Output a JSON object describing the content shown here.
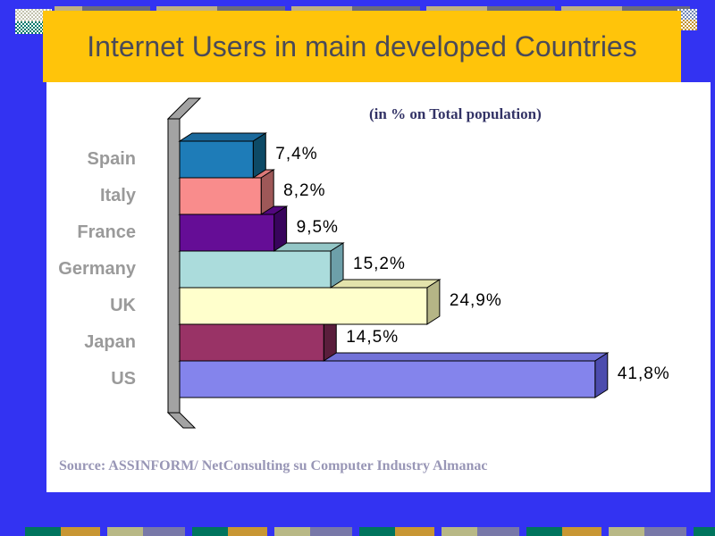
{
  "slide": {
    "title": "Internet Users in main developed Countries",
    "source": "Source: ASSINFORM/ NetConsulting su Computer Industry Almanac"
  },
  "chart_data": {
    "type": "bar",
    "orientation": "horizontal",
    "title": "",
    "subtitle": "(in % on Total population)",
    "categories": [
      "Spain",
      "Italy",
      "France",
      "Germany",
      "UK",
      "Japan",
      "US"
    ],
    "values": [
      7.4,
      8.2,
      9.5,
      15.2,
      24.9,
      14.5,
      41.8
    ],
    "value_labels": [
      "7,4%",
      "8,2%",
      "9,5%",
      "15,2%",
      "24,9%",
      "14,5%",
      "41,8%"
    ],
    "xlim": [
      0,
      45
    ],
    "grid": "off",
    "legend": "none",
    "bar_colors": [
      {
        "front": "#1E7CB8",
        "top": "#1A699C",
        "side": "#0D4A66"
      },
      {
        "front": "#F98C8C",
        "top": "#DC7A7A",
        "side": "#9E5858"
      },
      {
        "front": "#650D96",
        "top": "#52077E",
        "side": "#38045C"
      },
      {
        "front": "#ABDCDC",
        "top": "#93C6C6",
        "side": "#6D9FA9"
      },
      {
        "front": "#FFFFCC",
        "top": "#E3E3AC",
        "side": "#B5B586"
      },
      {
        "front": "#993366",
        "top": "#7E2A54",
        "side": "#5A1E3C"
      },
      {
        "front": "#8484EC",
        "top": "#7272D8",
        "side": "#4C4CAE"
      }
    ],
    "axis_wall_color": "#A3A3A3",
    "category_label_color": "#9A9A9A",
    "value_label_color": "#000000"
  },
  "theme": {
    "background_blue": "#3333F2",
    "banner_gold": "#FFC40A",
    "panel_white": "#FFFFFF",
    "title_text": "#4A4A58",
    "subtitle_navy": "#333366",
    "source_text": "#9896B6"
  }
}
